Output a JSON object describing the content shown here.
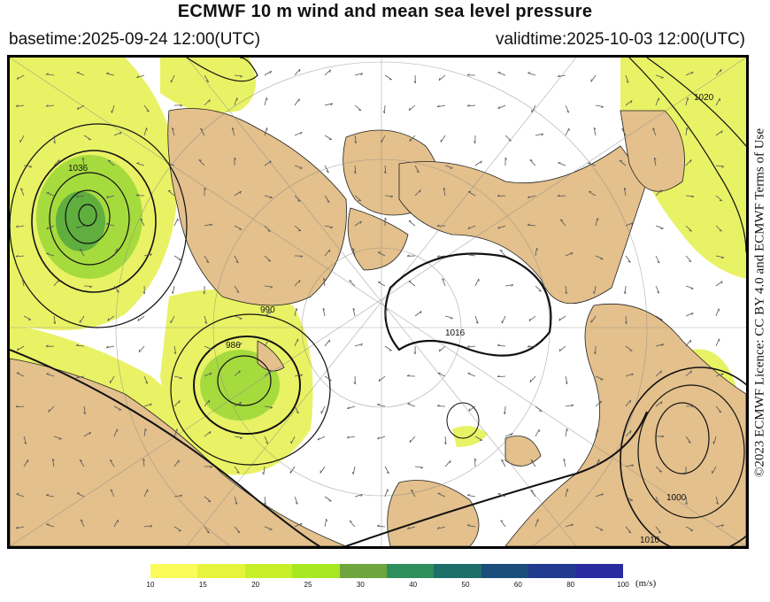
{
  "title": "ECMWF 10 m wind and mean sea level pressure",
  "basetime": "basetime:2025-09-24 12:00(UTC)",
  "validtime": "validtime:2025-10-03 12:00(UTC)",
  "license": "©2023 ECMWF Licence: CC BY 4.0 and ECMWF Terms of Use",
  "colorbar": {
    "unit": "(m/s)",
    "ticks": [
      "10",
      "15",
      "20",
      "25",
      "30",
      "40",
      "50",
      "60",
      "80",
      "100"
    ],
    "colors": [
      "#fbfb5a",
      "#e6f53c",
      "#c6ef2a",
      "#a8e822",
      "#6fa53e",
      "#2f8f5c",
      "#1e6e6a",
      "#1b4e7a",
      "#1f3a8e",
      "#2a2aa0"
    ]
  },
  "map": {
    "land_color": "#e3c08c",
    "sea_color": "#ffffff",
    "isobar_labels": [
      "1036",
      "990",
      "986",
      "1016",
      "1020",
      "1000",
      "1010"
    ]
  }
}
